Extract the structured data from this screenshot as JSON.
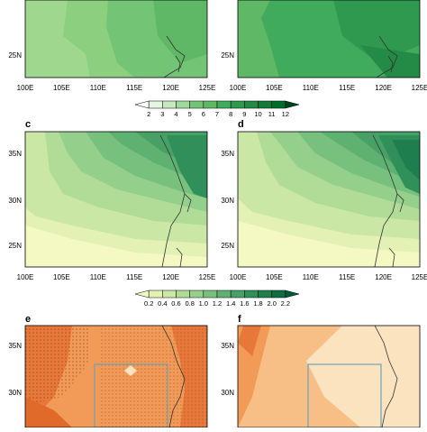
{
  "panels": {
    "a": {
      "x_ticks": [
        "100E",
        "105E",
        "110E",
        "115E",
        "120E",
        "125E"
      ],
      "y_ticks": [
        "25N"
      ]
    },
    "b": {
      "x_ticks": [
        "100E",
        "105E",
        "110E",
        "115E",
        "120E",
        "125E"
      ],
      "y_ticks": [
        "25N"
      ]
    },
    "c": {
      "label": "c",
      "x_ticks": [
        "100E",
        "105E",
        "110E",
        "115E",
        "120E",
        "125E"
      ],
      "y_ticks": [
        "35N",
        "30N",
        "25N"
      ]
    },
    "d": {
      "label": "d",
      "x_ticks": [
        "100E",
        "105E",
        "110E",
        "115E",
        "120E",
        "125E"
      ],
      "y_ticks": [
        "35N",
        "30N",
        "25N"
      ]
    },
    "e": {
      "label": "e",
      "y_ticks": [
        "35N",
        "30N"
      ]
    },
    "f": {
      "label": "f",
      "y_ticks": [
        "35N",
        "30N"
      ]
    }
  },
  "colorbar_top": {
    "labels": [
      "2",
      "3",
      "4",
      "5",
      "6",
      "7",
      "8",
      "9",
      "10",
      "11",
      "12"
    ],
    "colors": [
      "#f7fcf5",
      "#e5f5e0",
      "#c7e9c0",
      "#a1d99b",
      "#74c476",
      "#5fb865",
      "#41ab5d",
      "#2f9a4f",
      "#238b45",
      "#137a3a",
      "#006d2c",
      "#00441b"
    ]
  },
  "colorbar_mid": {
    "labels": [
      "0.2",
      "0.4",
      "0.6",
      "0.8",
      "1.0",
      "1.2",
      "1.4",
      "1.6",
      "1.8",
      "2.0",
      "2.2"
    ],
    "colors": [
      "#f4f9c4",
      "#e3f1b5",
      "#cbe7a6",
      "#b0dc98",
      "#94cf8b",
      "#78c07e",
      "#5fb172",
      "#47a066",
      "#318f5a",
      "#1f7e4e",
      "#0f6c42",
      "#005a35"
    ]
  },
  "map_colors": {
    "green_light": "#9fd78f",
    "green_mid": "#74c476",
    "green_dark": "#41ab5d",
    "green_darker": "#2c8c45",
    "orange_dark": "#e8783a",
    "orange_mid": "#f29a58",
    "orange_light": "#f7be85",
    "cream": "#fbe3c0",
    "box": "#6fa3b8"
  }
}
